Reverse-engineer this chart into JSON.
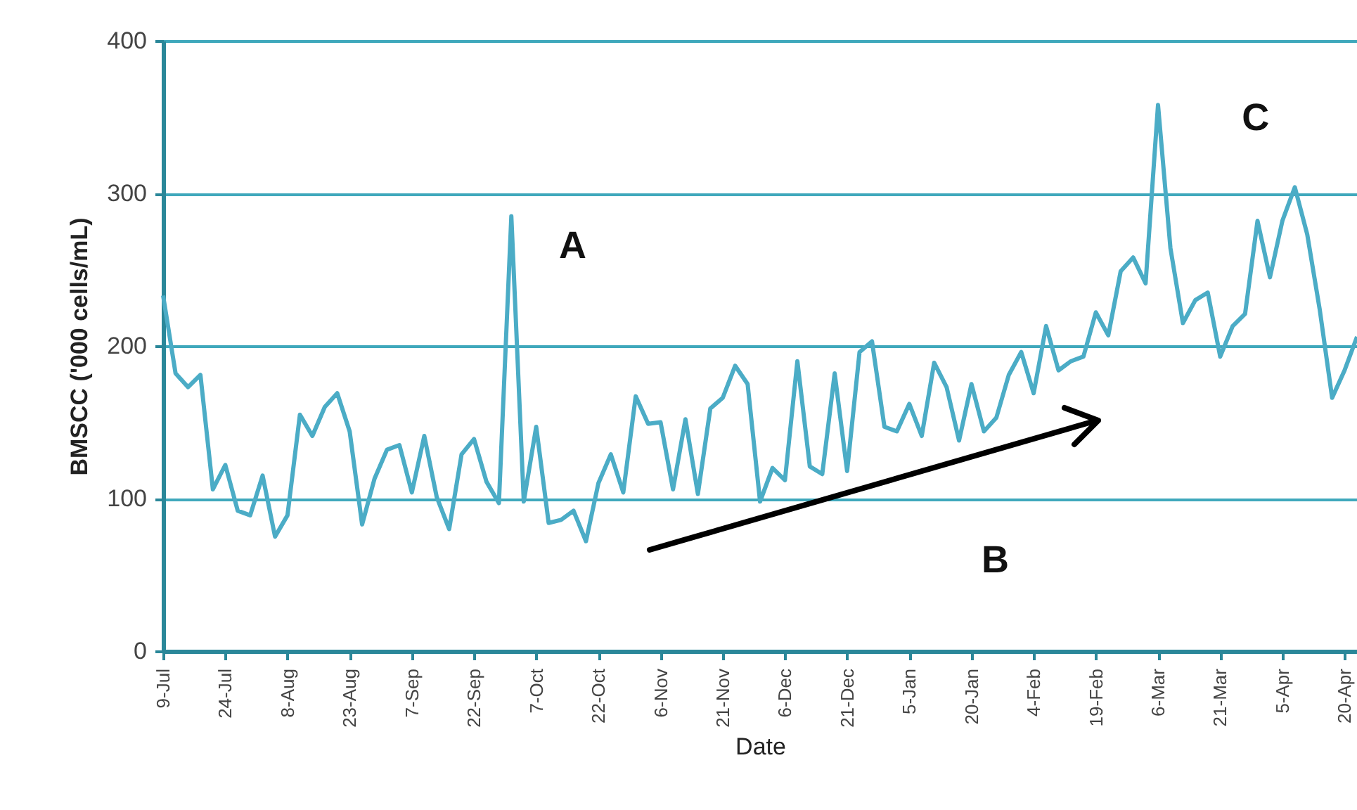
{
  "chart_data": {
    "type": "line",
    "xlabel": "Date",
    "ylabel": "BMSCC ('000 cells/mL)",
    "categories": [
      "9-Jul",
      null,
      null,
      null,
      null,
      "24-Jul",
      null,
      null,
      null,
      null,
      "8-Aug",
      null,
      null,
      null,
      null,
      "23-Aug",
      null,
      null,
      null,
      null,
      "7-Sep",
      null,
      null,
      null,
      null,
      "22-Sep",
      null,
      null,
      null,
      null,
      "7-Oct",
      null,
      null,
      null,
      null,
      "22-Oct",
      null,
      null,
      null,
      null,
      "6-Nov",
      null,
      null,
      null,
      null,
      "21-Nov",
      null,
      null,
      null,
      null,
      "6-Dec",
      null,
      null,
      null,
      null,
      "21-Dec",
      null,
      null,
      null,
      null,
      "5-Jan",
      null,
      null,
      null,
      null,
      "20-Jan",
      null,
      null,
      null,
      null,
      "4-Feb",
      null,
      null,
      null,
      null,
      "19-Feb",
      null,
      null,
      null,
      null,
      "6-Mar",
      null,
      null,
      null,
      null,
      "21-Mar",
      null,
      null,
      null,
      null,
      "5-Apr",
      null,
      null,
      null,
      null,
      "20-Apr",
      null
    ],
    "series": [
      {
        "color": "#4bacc6",
        "values": [
          233,
          182,
          173,
          181,
          106,
          122,
          92,
          89,
          115,
          75,
          89,
          155,
          141,
          160,
          169,
          144,
          83,
          113,
          132,
          135,
          104,
          141,
          101,
          80,
          129,
          139,
          111,
          97,
          285,
          98,
          147,
          84,
          86,
          92,
          72,
          110,
          129,
          104,
          167,
          149,
          150,
          106,
          152,
          103,
          159,
          166,
          187,
          175,
          98,
          120,
          112,
          190,
          121,
          116,
          182,
          118,
          196,
          203,
          147,
          144,
          162,
          141,
          189,
          173,
          138,
          175,
          144,
          153,
          181,
          196,
          169,
          213,
          184,
          190,
          193,
          222,
          207,
          249,
          258,
          241,
          358,
          264,
          215,
          230,
          235,
          193,
          213,
          221,
          282,
          245,
          282,
          304,
          273,
          224,
          166,
          184,
          206
        ]
      }
    ],
    "ylim": [
      0,
      400
    ],
    "yticks": [
      0,
      100,
      200,
      300,
      400
    ],
    "grid": "y",
    "annotations": [
      "A",
      "B",
      "C"
    ]
  }
}
